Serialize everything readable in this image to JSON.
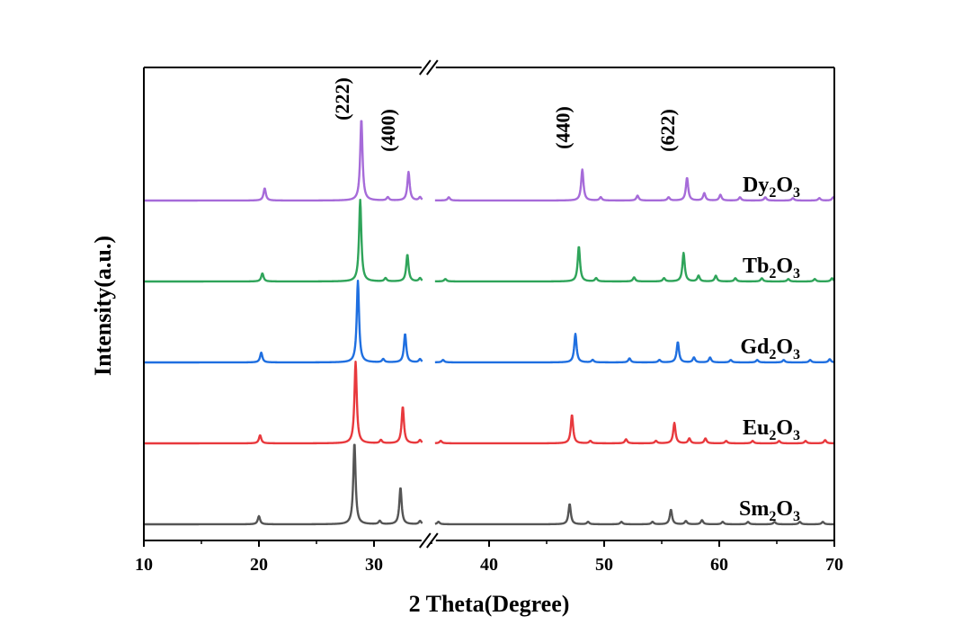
{
  "chart_data": {
    "type": "line",
    "xlabel": "2 Theta(Degree)",
    "ylabel": "Intensity(a.u.)",
    "xlim": [
      10,
      70
    ],
    "axis_break": [
      34.2,
      35.3
    ],
    "x_ticks": [
      10,
      20,
      30,
      40,
      50,
      60,
      70
    ],
    "x_tick_labels": [
      "10",
      "20",
      "30",
      "40",
      "50",
      "60",
      "70"
    ],
    "grid": false,
    "y_tick_labels": false,
    "annotations": [
      {
        "text": "(222)",
        "x": 28.9
      },
      {
        "text": "(400)",
        "x": 32.9
      },
      {
        "text": "(440)",
        "x": 48.1
      },
      {
        "text": "(622)",
        "x": 57.2
      }
    ],
    "series": [
      {
        "name": "Sm₂O₃",
        "base": "Sm",
        "sub1": "2",
        "mid": "O",
        "sub2": "3",
        "color": "#555555",
        "offset": 0,
        "shift": 0,
        "peaks": [
          [
            20.0,
            0.1
          ],
          [
            28.3,
            1.0
          ],
          [
            30.5,
            0.04
          ],
          [
            32.3,
            0.45
          ],
          [
            34.0,
            0.04
          ],
          [
            35.6,
            0.03
          ],
          [
            47.0,
            0.25
          ],
          [
            48.6,
            0.03
          ],
          [
            51.5,
            0.03
          ],
          [
            54.2,
            0.03
          ],
          [
            55.8,
            0.18
          ],
          [
            57.1,
            0.04
          ],
          [
            58.5,
            0.05
          ],
          [
            60.3,
            0.03
          ],
          [
            62.5,
            0.03
          ],
          [
            64.8,
            0.03
          ],
          [
            67.0,
            0.03
          ],
          [
            69.0,
            0.03
          ]
        ]
      },
      {
        "name": "Eu₂O₃",
        "base": "Eu",
        "sub1": "2",
        "mid": "O",
        "sub2": "3",
        "color": "#e8393d",
        "offset": 1,
        "shift": 0,
        "peaks": [
          [
            20.1,
            0.1
          ],
          [
            28.4,
            1.0
          ],
          [
            30.6,
            0.04
          ],
          [
            32.5,
            0.45
          ],
          [
            34.0,
            0.04
          ],
          [
            35.8,
            0.03
          ],
          [
            47.2,
            0.35
          ],
          [
            48.8,
            0.03
          ],
          [
            51.9,
            0.05
          ],
          [
            54.5,
            0.03
          ],
          [
            56.1,
            0.25
          ],
          [
            57.4,
            0.06
          ],
          [
            58.8,
            0.06
          ],
          [
            60.6,
            0.03
          ],
          [
            62.9,
            0.03
          ],
          [
            65.2,
            0.03
          ],
          [
            67.5,
            0.03
          ],
          [
            69.2,
            0.04
          ]
        ]
      },
      {
        "name": "Gd₂O₃",
        "base": "Gd",
        "sub1": "2",
        "mid": "O",
        "sub2": "3",
        "color": "#1f6fe0",
        "offset": 2,
        "shift": 0,
        "peaks": [
          [
            20.2,
            0.12
          ],
          [
            28.6,
            1.0
          ],
          [
            30.8,
            0.04
          ],
          [
            32.7,
            0.35
          ],
          [
            34.0,
            0.04
          ],
          [
            36.0,
            0.03
          ],
          [
            47.5,
            0.35
          ],
          [
            49.0,
            0.03
          ],
          [
            52.2,
            0.05
          ],
          [
            54.8,
            0.03
          ],
          [
            56.4,
            0.25
          ],
          [
            57.8,
            0.06
          ],
          [
            59.2,
            0.06
          ],
          [
            61.0,
            0.03
          ],
          [
            63.3,
            0.03
          ],
          [
            65.6,
            0.03
          ],
          [
            67.9,
            0.03
          ],
          [
            69.6,
            0.04
          ]
        ]
      },
      {
        "name": "Tb₂O₃",
        "base": "Tb",
        "sub1": "2",
        "mid": "O",
        "sub2": "3",
        "color": "#2fa45a",
        "offset": 3,
        "shift": 0,
        "peaks": [
          [
            20.3,
            0.1
          ],
          [
            28.8,
            1.0
          ],
          [
            31.0,
            0.04
          ],
          [
            32.9,
            0.33
          ],
          [
            34.0,
            0.04
          ],
          [
            36.2,
            0.03
          ],
          [
            47.8,
            0.43
          ],
          [
            49.3,
            0.04
          ],
          [
            52.6,
            0.05
          ],
          [
            55.2,
            0.04
          ],
          [
            56.9,
            0.35
          ],
          [
            58.2,
            0.07
          ],
          [
            59.7,
            0.07
          ],
          [
            61.4,
            0.04
          ],
          [
            63.7,
            0.04
          ],
          [
            66.0,
            0.03
          ],
          [
            68.3,
            0.03
          ],
          [
            69.8,
            0.04
          ]
        ]
      },
      {
        "name": "Dy₂O₃",
        "base": "Dy",
        "sub1": "2",
        "mid": "O",
        "sub2": "3",
        "color": "#a66bd9",
        "offset": 4,
        "shift": 0,
        "peaks": [
          [
            20.5,
            0.15
          ],
          [
            28.9,
            1.0
          ],
          [
            31.2,
            0.04
          ],
          [
            33.0,
            0.35
          ],
          [
            34.0,
            0.04
          ],
          [
            36.5,
            0.04
          ],
          [
            48.1,
            0.38
          ],
          [
            49.7,
            0.04
          ],
          [
            52.9,
            0.06
          ],
          [
            55.6,
            0.04
          ],
          [
            57.2,
            0.28
          ],
          [
            58.7,
            0.09
          ],
          [
            60.1,
            0.07
          ],
          [
            61.8,
            0.04
          ],
          [
            64.0,
            0.04
          ],
          [
            66.4,
            0.03
          ],
          [
            68.7,
            0.03
          ],
          [
            69.9,
            0.04
          ]
        ]
      }
    ]
  }
}
